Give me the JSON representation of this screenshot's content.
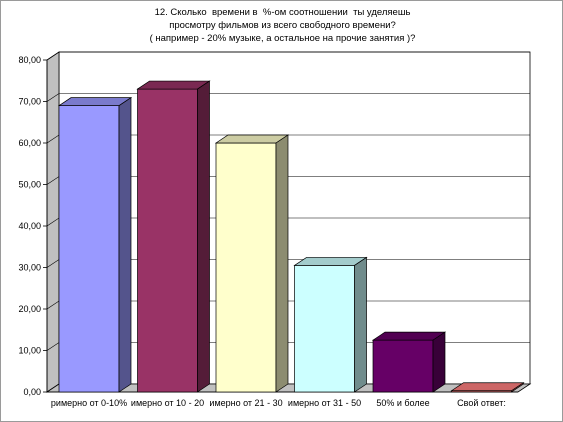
{
  "chart_data": {
    "type": "bar",
    "title_lines": [
      "12. Сколько  времени в  %-ом соотношении  ты уделяешь",
      "просмотру фильмов из всего свободного времени?",
      "( например - 20% музыке, а остальное на прочие занятия )?"
    ],
    "categories": [
      "римерно от 0-10%",
      "имерно от 10 - 20",
      "имерно от 21 - 30",
      "имерно от 31 - 50",
      "50% и более",
      "Свой ответ:"
    ],
    "values": [
      69.0,
      73.0,
      60.0,
      30.5,
      12.5,
      0.3
    ],
    "colors": [
      "#9999ff",
      "#993366",
      "#ffffcc",
      "#ccffff",
      "#660066",
      "#ff8080"
    ],
    "ylim": [
      0,
      80
    ],
    "yticks": [
      "0,00",
      "10,00",
      "20,00",
      "30,00",
      "40,00",
      "50,00",
      "60,00",
      "70,00",
      "80,00"
    ],
    "grid": true,
    "legend": "none"
  }
}
